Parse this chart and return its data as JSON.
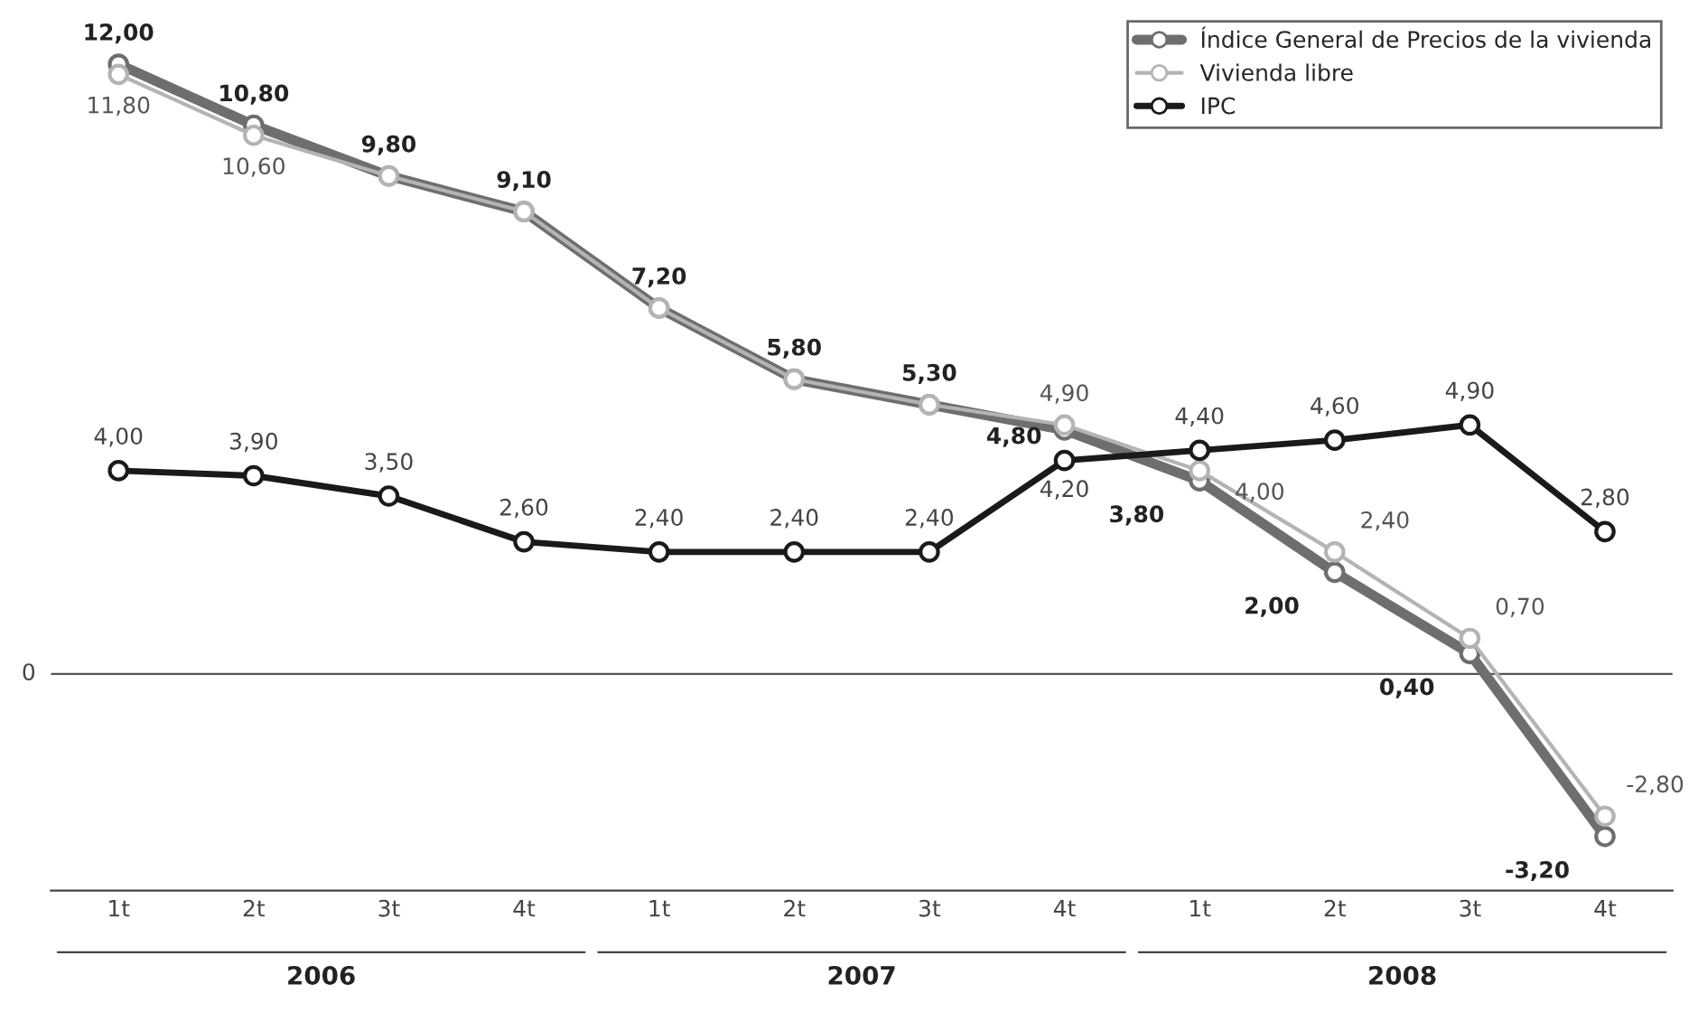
{
  "chart_data": {
    "type": "line",
    "categories": [
      "1t",
      "2t",
      "3t",
      "4t",
      "1t",
      "2t",
      "3t",
      "4t",
      "1t",
      "2t",
      "3t",
      "4t"
    ],
    "series": [
      {
        "name": "Índice General de Precios de la vivienda",
        "color": "#6e6e6e",
        "values": [
          12.0,
          10.8,
          9.8,
          9.1,
          7.2,
          5.8,
          5.3,
          4.8,
          3.8,
          2.0,
          0.4,
          -3.2
        ],
        "value_labels": [
          "12,00",
          "10,80",
          "9,80",
          "9,10",
          "7,20",
          "5,80",
          "5,30",
          "4,80",
          "3,80",
          "2,00",
          "0,40",
          "-3,20"
        ]
      },
      {
        "name": "Vivienda libre",
        "color": "#b4b4b4",
        "values": [
          11.8,
          10.6,
          9.8,
          9.1,
          7.2,
          5.8,
          5.3,
          4.9,
          4.0,
          2.4,
          0.7,
          -2.8
        ],
        "value_labels": [
          "11,80",
          "10,60",
          null,
          null,
          null,
          null,
          null,
          "4,90",
          "4,00",
          "2,40",
          "0,70",
          "-2,80"
        ]
      },
      {
        "name": "IPC",
        "color": "#1a1a1a",
        "values": [
          4.0,
          3.9,
          3.5,
          2.6,
          2.4,
          2.4,
          2.4,
          4.2,
          4.4,
          4.6,
          4.9,
          2.8
        ],
        "value_labels": [
          "4,00",
          "3,90",
          "3,50",
          "2,60",
          "2,40",
          "2,40",
          "2,40",
          "4,20",
          "4,40",
          "4,60",
          "4,90",
          "2,80"
        ]
      }
    ],
    "ref_lines": [
      {
        "axis": "y",
        "value": 0,
        "label": "0",
        "color": "#555555"
      }
    ],
    "annotations": [
      "2006",
      "2007",
      "2008"
    ],
    "marker": "circle",
    "line_style": "solid",
    "legend": "top right",
    "grid": false
  }
}
